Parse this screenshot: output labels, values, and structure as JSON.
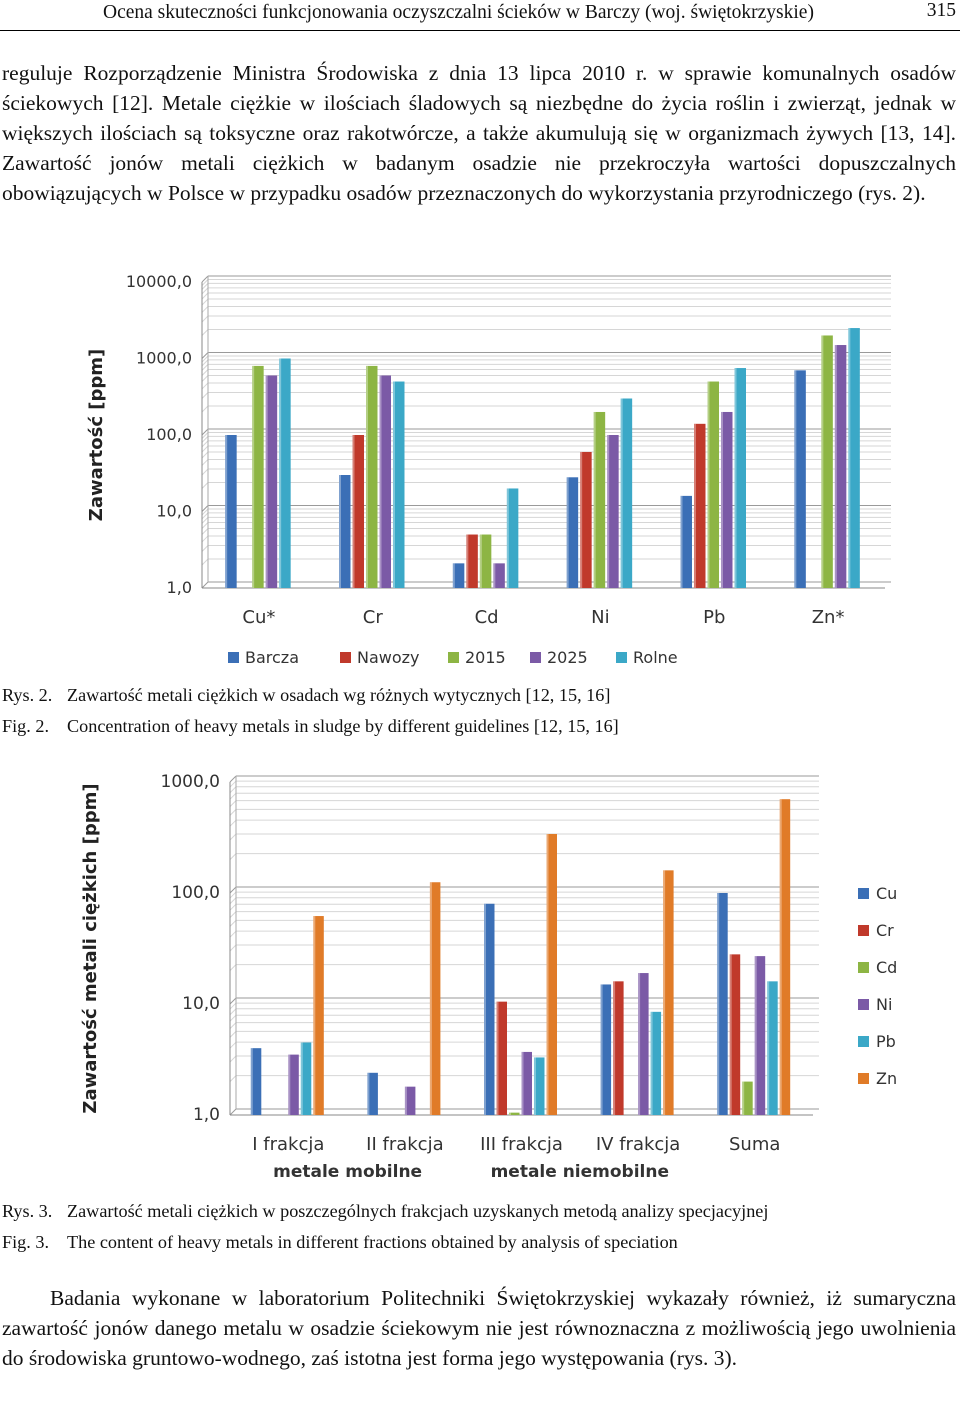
{
  "header": {
    "title": "Ocena skuteczności funkcjonowania oczyszczalni ścieków w Barczy (woj. świętokrzyskie)",
    "page_number": "315"
  },
  "paragraph_1": "reguluje Rozporządzenie Ministra Środowiska z dnia 13 lipca 2010 r. w sprawie komunalnych osadów ściekowych [12]. Metale ciężkie w ilościach śladowych są niezbędne do życia roślin i zwierząt, jednak w większych ilościach są toksyczne oraz rakotwórcze, a także akumulują się w organizmach żywych [13, 14]. Zawartość jonów metali ciężkich w badanym osadzie nie przekroczyła wartości dopuszczalnych obowiązujących w Polsce w przypadku osadów przeznaczonych do wykorzystania przyrodniczego (rys. 2).",
  "figure_2": {
    "caption_pl_label": "Rys. 2.",
    "caption_pl": "Zawartość metali ciężkich w osadach wg różnych wytycznych [12, 15, 16]",
    "caption_en_label": "Fig. 2.",
    "caption_en": "Concentration of heavy metals in sludge by different guidelines [12, 15, 16]"
  },
  "figure_3": {
    "caption_pl_label": "Rys. 3.",
    "caption_pl": "Zawartość metali ciężkich w poszczególnych frakcjach uzyskanych metodą analizy specjacyjnej",
    "caption_en_label": "Fig. 3.",
    "caption_en": "The content of heavy metals in different fractions obtained by analysis of speciation"
  },
  "paragraph_2": "Badania wykonane w laboratorium Politechniki Świętokrzyskiej wykazały również, iż sumaryczna zawartość jonów danego metalu w osadzie ściekowym nie jest równoznaczna z możliwością jego uwolnienia do środowiska gruntowo-wodnego, zaś istotna jest forma jego występowania (rys. 3).",
  "chart_data": [
    {
      "type": "bar",
      "scale": "log",
      "ylabel": "Zawartość [ppm]",
      "ylim": [
        1,
        10000
      ],
      "yticks": [
        "1,0",
        "10,0",
        "100,0",
        "1000,0",
        "10000,0"
      ],
      "categories": [
        "Cu*",
        "Cr",
        "Cd",
        "Ni",
        "Pb",
        "Zn*"
      ],
      "legend_position": "bottom",
      "grid": true,
      "series": [
        {
          "name": "Barcza",
          "color": "#3b6fb6",
          "values": [
            100,
            30,
            2.1,
            28,
            16,
            700
          ]
        },
        {
          "name": "Nawozy",
          "color": "#c0392b",
          "values": [
            1.0,
            100,
            5,
            60,
            140,
            1.0
          ]
        },
        {
          "name": "2015",
          "color": "#8db544",
          "values": [
            800,
            800,
            5,
            200,
            500,
            2000
          ]
        },
        {
          "name": "2025",
          "color": "#7b5aa6",
          "values": [
            600,
            600,
            2.1,
            100,
            200,
            1500
          ]
        },
        {
          "name": "Rolne",
          "color": "#3ba8c7",
          "values": [
            1000,
            500,
            20,
            300,
            750,
            2500
          ]
        }
      ]
    },
    {
      "type": "bar",
      "scale": "log",
      "ylabel": "Zawartość metali ciężkich [ppm]",
      "ylim": [
        1,
        1000
      ],
      "yticks": [
        "1,0",
        "10,0",
        "100,0",
        "1000,0"
      ],
      "categories": [
        "I frakcja",
        "II frakcja",
        "III frakcja",
        "IV frakcja",
        "Suma"
      ],
      "group_labels": [
        "metale mobilne",
        "metale niemobilne"
      ],
      "legend_position": "right",
      "grid": true,
      "series": [
        {
          "name": "Cu",
          "color": "#3b6fb6",
          "values": [
            4.0,
            2.4,
            80,
            15,
            100
          ]
        },
        {
          "name": "Cr",
          "color": "#c0392b",
          "values": [
            1.0,
            1.0,
            10.5,
            16,
            28
          ]
        },
        {
          "name": "Cd",
          "color": "#8db544",
          "values": [
            1.0,
            1.0,
            1.05,
            1.0,
            2.0
          ]
        },
        {
          "name": "Ni",
          "color": "#7b5aa6",
          "values": [
            3.5,
            1.8,
            3.7,
            19,
            27
          ]
        },
        {
          "name": "Pb",
          "color": "#3ba8c7",
          "values": [
            4.5,
            1.0,
            3.3,
            8.5,
            16
          ]
        },
        {
          "name": "Zn",
          "color": "#e07b28",
          "values": [
            62,
            125,
            340,
            160,
            700
          ]
        }
      ]
    }
  ]
}
